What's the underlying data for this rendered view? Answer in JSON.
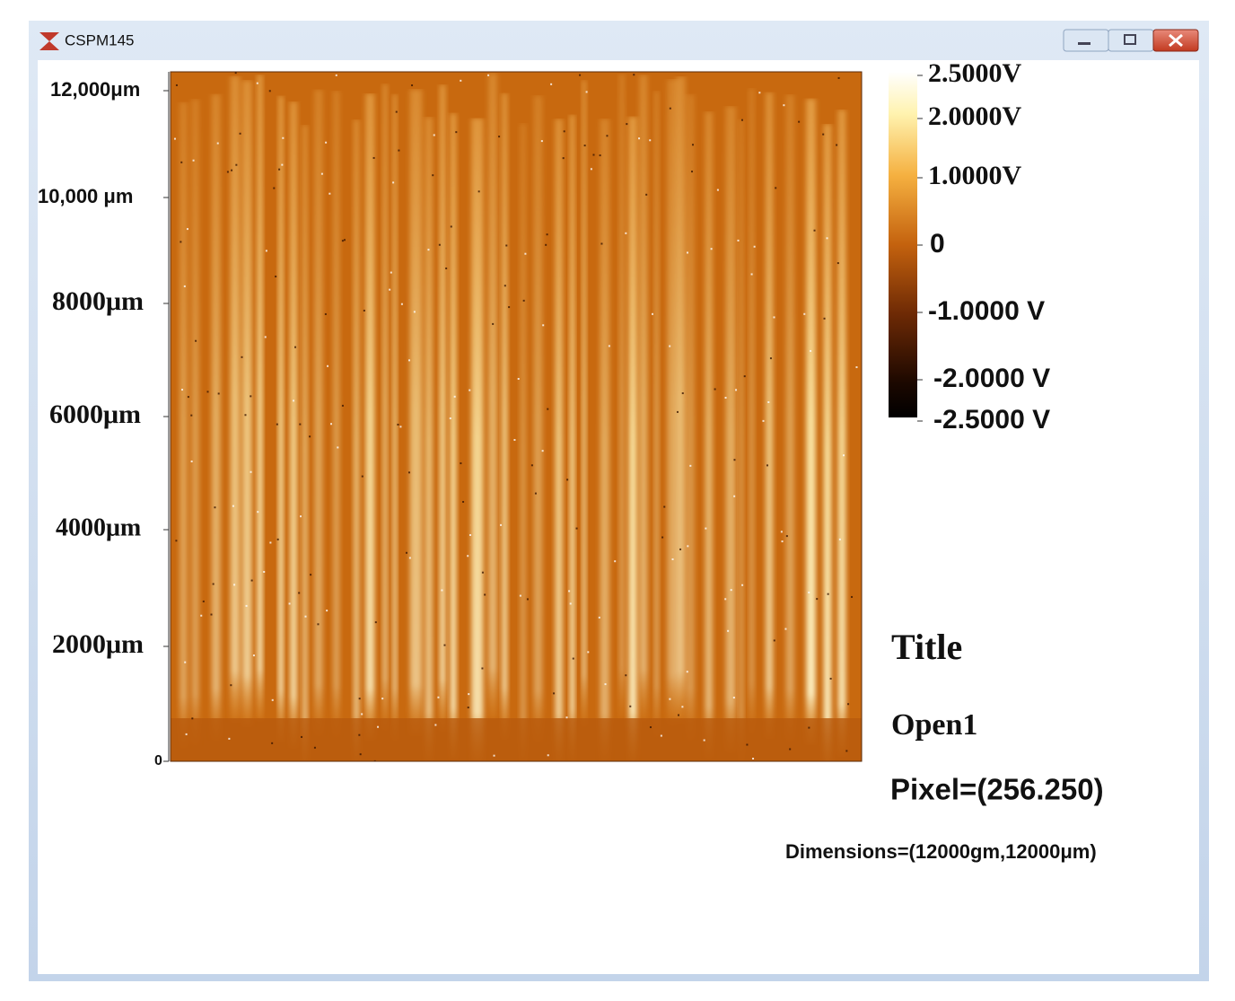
{
  "window": {
    "title": "CSPM145"
  },
  "y_axis": {
    "labels": [
      "12,000μm",
      "10,000 μm",
      "8000μm",
      "6000μm",
      "4000μm",
      "2000μm",
      "0"
    ]
  },
  "colorbar": {
    "labels": [
      "2.5000V",
      "2.0000V",
      "1.0000V",
      "0",
      "-1.0000 V",
      "-2.0000 V",
      "-2.5000 V"
    ]
  },
  "info": {
    "title": "Title",
    "name": "Open1",
    "pixel": "Pixel=(256.250)",
    "dimensions": "Dimensions=(12000gm,12000μm)"
  }
}
